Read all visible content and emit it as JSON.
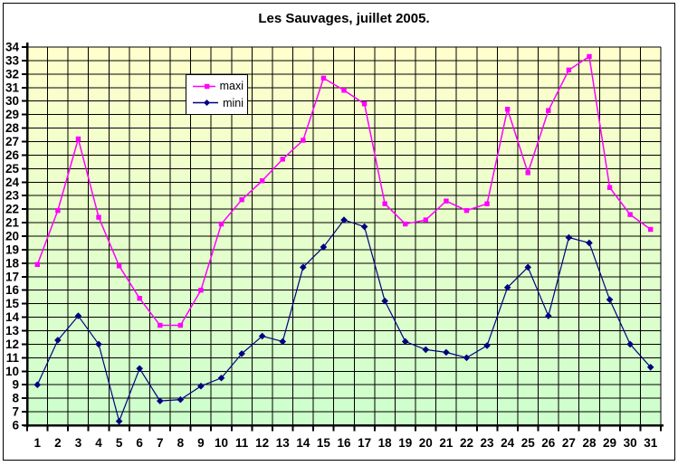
{
  "chart_data": {
    "type": "line",
    "title": "Les Sauvages, juillet 2005.",
    "x": [
      1,
      2,
      3,
      4,
      5,
      6,
      7,
      8,
      9,
      10,
      11,
      12,
      13,
      14,
      15,
      16,
      17,
      18,
      19,
      20,
      21,
      22,
      23,
      24,
      25,
      26,
      27,
      28,
      29,
      30,
      31
    ],
    "x_ticklabels": [
      "1",
      "2",
      "3",
      "4",
      "5",
      "6",
      "7",
      "8",
      "9",
      "10",
      "11",
      "12",
      "13",
      "14",
      "15",
      "16",
      "17",
      "18",
      "19",
      "20",
      "21",
      "22",
      "23",
      "24",
      "25",
      "26",
      "27",
      "28",
      "29",
      "30",
      "31"
    ],
    "y_ticklabels": [
      "6",
      "7",
      "8",
      "9",
      "10",
      "11",
      "12",
      "13",
      "14",
      "15",
      "16",
      "17",
      "18",
      "19",
      "20",
      "21",
      "22",
      "23",
      "24",
      "25",
      "26",
      "27",
      "28",
      "29",
      "30",
      "31",
      "32",
      "33",
      "34"
    ],
    "ylim": [
      6,
      34
    ],
    "ytick_step": 1,
    "xlabel": "",
    "ylabel": "",
    "grid": true,
    "grid_color": "#000000",
    "axis_color": "#000000",
    "plot_background": {
      "top": "#FFFFCC",
      "bottom": "#CCFFCC"
    },
    "legend_position": "top-left-inside",
    "series": [
      {
        "name": "maxi",
        "color": "#FF00FF",
        "marker": "square",
        "values": [
          17.9,
          21.9,
          27.2,
          21.4,
          17.8,
          15.4,
          13.4,
          13.4,
          16.0,
          20.9,
          22.7,
          24.1,
          25.7,
          27.1,
          31.7,
          30.8,
          29.8,
          22.4,
          20.9,
          21.2,
          22.6,
          21.9,
          22.4,
          29.4,
          24.7,
          29.3,
          32.3,
          33.3,
          23.6,
          21.6,
          20.5
        ]
      },
      {
        "name": "mini",
        "color": "#000080",
        "marker": "diamond",
        "values": [
          9.0,
          12.3,
          14.1,
          12.0,
          6.3,
          10.2,
          7.8,
          7.9,
          8.9,
          9.5,
          11.3,
          12.6,
          12.2,
          17.7,
          19.2,
          21.2,
          20.7,
          15.2,
          12.2,
          11.6,
          11.4,
          11.0,
          11.9,
          16.2,
          17.7,
          14.1,
          19.9,
          19.5,
          15.3,
          12.0,
          10.3
        ]
      }
    ]
  }
}
